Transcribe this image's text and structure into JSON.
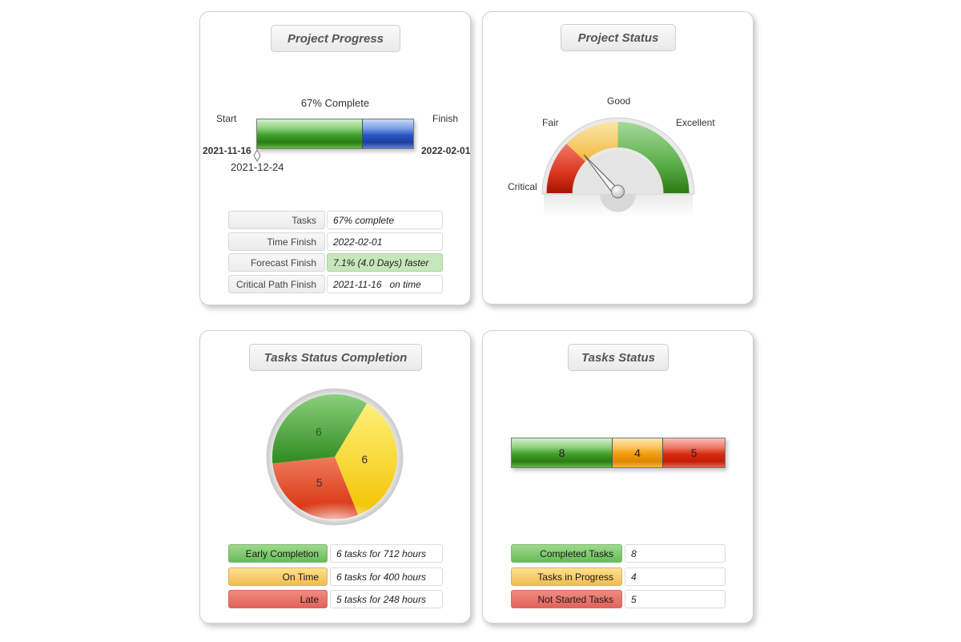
{
  "project_progress": {
    "title": "Project Progress",
    "percent_label": "67% Complete",
    "percent_complete": 67,
    "start_label": "Start",
    "finish_label": "Finish",
    "start_date": "2021-11-16",
    "finish_date": "2022-02-01",
    "marker_date": "2021-12-24",
    "rows": [
      {
        "label": "Tasks",
        "value": "67% complete"
      },
      {
        "label": "Time Finish",
        "value": "2022-02-01"
      },
      {
        "label": "Forecast Finish",
        "value": "7.1% (4.0 Days) faster"
      },
      {
        "label": "Critical Path Finish",
        "value": "2021-11-16   on time"
      }
    ]
  },
  "project_status": {
    "title": "Project Status",
    "zones": [
      "Critical",
      "Fair",
      "Good",
      "Excellent"
    ],
    "needle_zone": "Fair",
    "colors": {
      "critical": "#d9301c",
      "fair": "#f2b73a",
      "good": "#4a9f3c"
    }
  },
  "tasks_completion": {
    "title": "Tasks Status Completion",
    "legend": [
      {
        "label": "Early Completion",
        "value": "6 tasks for 712 hours"
      },
      {
        "label": "On Time",
        "value": "6 tasks for 400 hours"
      },
      {
        "label": "Late",
        "value": "5 tasks for 248 hours"
      }
    ]
  },
  "tasks_status": {
    "title": "Tasks Status",
    "legend": [
      {
        "label": "Completed Tasks",
        "value": "8"
      },
      {
        "label": "Tasks in Progress",
        "value": "4"
      },
      {
        "label": "Not Started Tasks",
        "value": "5"
      }
    ]
  },
  "chart_data": [
    {
      "type": "pie",
      "categories": [
        "Early Completion",
        "On Time",
        "Late"
      ],
      "values": [
        6,
        6,
        5
      ],
      "labels": [
        "6",
        "6",
        "5"
      ],
      "colors": [
        "#3f9e2b",
        "#f6d000",
        "#e03a10"
      ]
    },
    {
      "type": "bar",
      "categories": [
        "Completed Tasks",
        "Tasks in Progress",
        "Not Started Tasks"
      ],
      "values": [
        8,
        4,
        5
      ],
      "labels": [
        "8",
        "4",
        "5"
      ],
      "colors": [
        "#3f9e2b",
        "#f19b0c",
        "#d82a10"
      ]
    }
  ]
}
